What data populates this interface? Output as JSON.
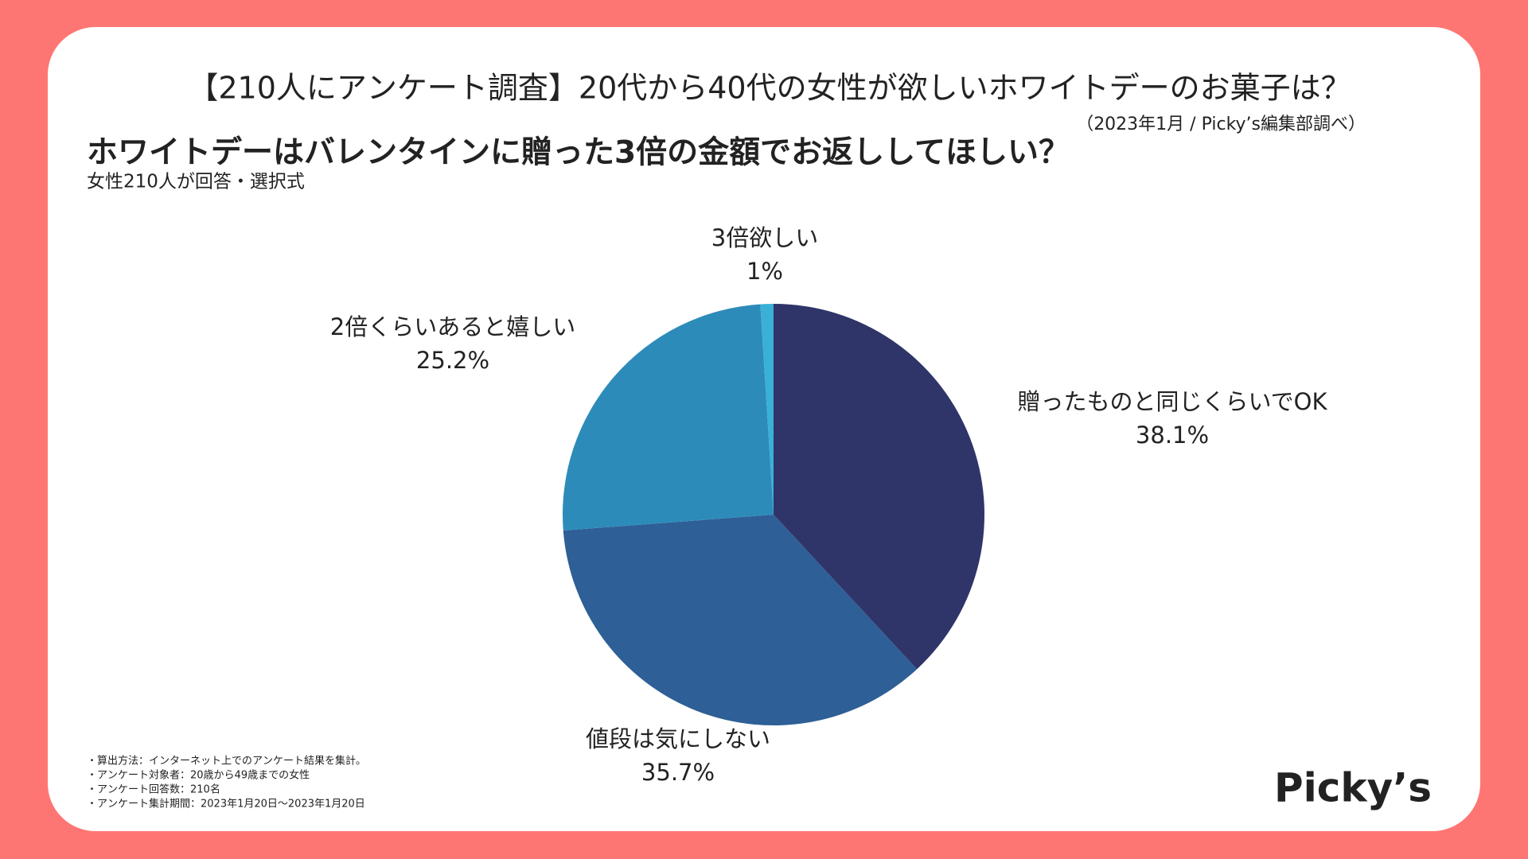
{
  "header": {
    "title": "【210人にアンケート調査】20代から40代の女性が欲しいホワイトデーのお菓子は？",
    "source": "（2023年1月 / Picky’s編集部調べ）"
  },
  "chart_data": {
    "type": "pie",
    "title": "ホワイトデーはバレンタインに贈った3倍の金額でお返ししてほしい？",
    "subtitle": "女性210人が回答・選択式",
    "categories": [
      "贈ったものと同じくらいでOK",
      "値段は気にしない",
      "2倍くらいあると嬉しい",
      "3倍欲しい"
    ],
    "values": [
      38.1,
      35.7,
      25.2,
      1
    ],
    "value_labels": [
      "38.1%",
      "35.7%",
      "25.2%",
      "1%"
    ],
    "colors": [
      "#2f3469",
      "#2e5f96",
      "#2d8bba",
      "#3ab0d6"
    ]
  },
  "footnotes": [
    "・算出方法：インターネット上でのアンケート結果を集計。",
    "・アンケート対象者：20歳から49歳までの女性",
    "・アンケート回答数：210名",
    "・アンケート集計期間：2023年1月20日〜2023年1月20日"
  ],
  "logo": "Picky’s"
}
